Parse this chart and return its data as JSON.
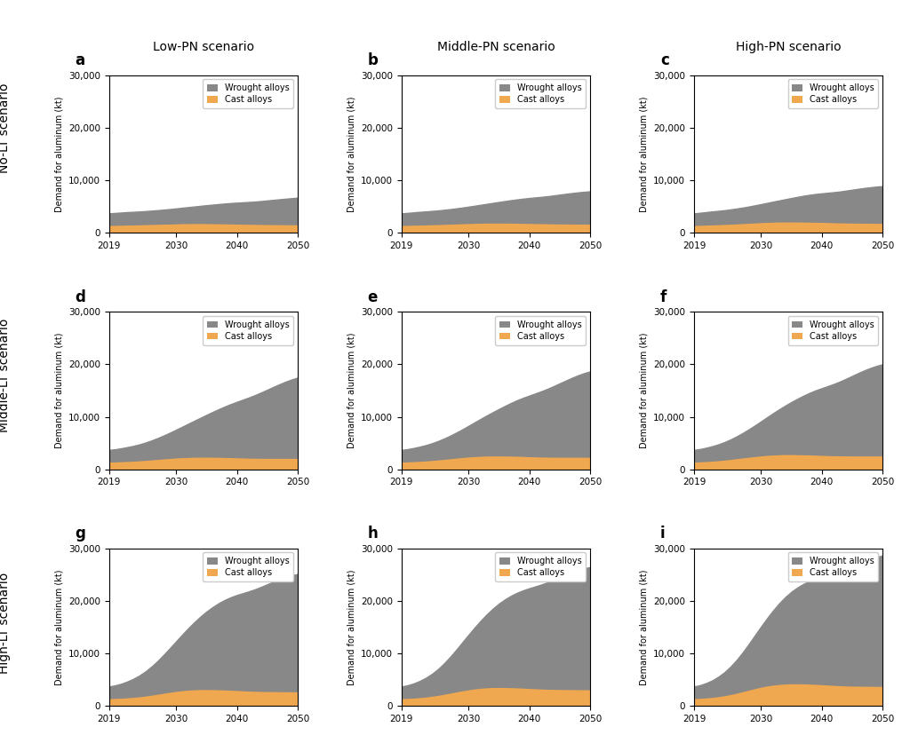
{
  "years": [
    2019,
    2020,
    2021,
    2022,
    2023,
    2024,
    2025,
    2026,
    2027,
    2028,
    2029,
    2030,
    2031,
    2032,
    2033,
    2034,
    2035,
    2036,
    2037,
    2038,
    2039,
    2040,
    2041,
    2042,
    2043,
    2044,
    2045,
    2046,
    2047,
    2048,
    2049,
    2050
  ],
  "subplot_labels": [
    "a",
    "b",
    "c",
    "d",
    "e",
    "f",
    "g",
    "h",
    "i"
  ],
  "col_titles": [
    "Low-PN scenario",
    "Middle-PN scenario",
    "High-PN scenario"
  ],
  "row_labels": [
    "No-LT scenario",
    "Middle-LT scenario",
    "High-LT scenario"
  ],
  "ylabel": "Demand for aluminum (kt)",
  "ylim": [
    0,
    30000
  ],
  "yticks": [
    0,
    10000,
    20000,
    30000
  ],
  "xticks": [
    2019,
    2030,
    2040,
    2050
  ],
  "wrought_color": "#888888",
  "cast_color": "#F0A850",
  "legend_labels": [
    "Wrought alloys",
    "Cast alloys"
  ],
  "wrought_data": {
    "a": [
      2200,
      2250,
      2300,
      2350,
      2380,
      2420,
      2460,
      2520,
      2580,
      2650,
      2730,
      2820,
      2920,
      3020,
      3130,
      3250,
      3380,
      3510,
      3640,
      3760,
      3870,
      3960,
      4050,
      4140,
      4230,
      4350,
      4480,
      4600,
      4720,
      4840,
      4950,
      5050
    ],
    "b": [
      2200,
      2260,
      2330,
      2400,
      2450,
      2510,
      2580,
      2660,
      2750,
      2850,
      2970,
      3100,
      3240,
      3390,
      3550,
      3720,
      3900,
      4080,
      4260,
      4430,
      4590,
      4730,
      4860,
      4990,
      5130,
      5300,
      5470,
      5630,
      5780,
      5920,
      6040,
      6150
    ],
    "c": [
      2200,
      2270,
      2360,
      2450,
      2520,
      2600,
      2700,
      2810,
      2930,
      3070,
      3230,
      3400,
      3590,
      3790,
      3990,
      4210,
      4440,
      4670,
      4890,
      5090,
      5270,
      5420,
      5560,
      5700,
      5860,
      6050,
      6240,
      6420,
      6590,
      6740,
      6870,
      6980
    ],
    "d": [
      2200,
      2300,
      2450,
      2620,
      2800,
      3020,
      3290,
      3600,
      3960,
      4360,
      4800,
      5280,
      5780,
      6300,
      6840,
      7380,
      7940,
      8500,
      9050,
      9580,
      10080,
      10550,
      11000,
      11450,
      11920,
      12430,
      12960,
      13490,
      14000,
      14480,
      14900,
      15250
    ],
    "e": [
      2200,
      2310,
      2480,
      2680,
      2900,
      3170,
      3490,
      3860,
      4280,
      4750,
      5260,
      5820,
      6410,
      7010,
      7620,
      8220,
      8830,
      9430,
      10010,
      10560,
      11060,
      11520,
      11970,
      12420,
      12900,
      13420,
      13960,
      14490,
      15000,
      15480,
      15890,
      16230
    ],
    "f": [
      2200,
      2320,
      2510,
      2730,
      2990,
      3310,
      3690,
      4130,
      4630,
      5190,
      5800,
      6460,
      7140,
      7840,
      8540,
      9220,
      9890,
      10530,
      11140,
      11710,
      12220,
      12670,
      13110,
      13560,
      14040,
      14570,
      15120,
      15660,
      16170,
      16630,
      17020,
      17340
    ],
    "g": [
      2200,
      2380,
      2650,
      3000,
      3430,
      3960,
      4610,
      5380,
      6260,
      7250,
      8320,
      9430,
      10560,
      11680,
      12760,
      13780,
      14730,
      15590,
      16360,
      17030,
      17590,
      18060,
      18470,
      18880,
      19310,
      19800,
      20310,
      20820,
      21290,
      21700,
      22050,
      22300
    ],
    "h": [
      2200,
      2390,
      2680,
      3070,
      3560,
      4160,
      4900,
      5790,
      6810,
      7940,
      9140,
      10360,
      11570,
      12750,
      13870,
      14900,
      15840,
      16670,
      17390,
      18000,
      18510,
      18960,
      19370,
      19790,
      20230,
      20730,
      21250,
      21760,
      22230,
      22640,
      22980,
      23230
    ],
    "i": [
      2200,
      2400,
      2710,
      3130,
      3680,
      4360,
      5200,
      6200,
      7360,
      8650,
      10020,
      11410,
      12780,
      14100,
      15330,
      16430,
      17400,
      18220,
      18920,
      19510,
      20010,
      20460,
      20880,
      21300,
      21750,
      22260,
      22790,
      23310,
      23780,
      24190,
      24530,
      24780
    ]
  },
  "cast_data": {
    "a": [
      1500,
      1530,
      1560,
      1590,
      1610,
      1640,
      1670,
      1700,
      1730,
      1760,
      1790,
      1820,
      1850,
      1870,
      1880,
      1880,
      1870,
      1850,
      1830,
      1810,
      1790,
      1770,
      1750,
      1730,
      1710,
      1690,
      1680,
      1670,
      1660,
      1650,
      1640,
      1630
    ],
    "b": [
      1500,
      1530,
      1560,
      1590,
      1620,
      1650,
      1680,
      1720,
      1760,
      1800,
      1840,
      1880,
      1910,
      1940,
      1960,
      1970,
      1970,
      1960,
      1950,
      1930,
      1910,
      1890,
      1870,
      1850,
      1830,
      1810,
      1800,
      1790,
      1780,
      1770,
      1760,
      1750
    ],
    "c": [
      1500,
      1540,
      1580,
      1620,
      1660,
      1700,
      1750,
      1810,
      1870,
      1930,
      1990,
      2050,
      2100,
      2140,
      2170,
      2180,
      2180,
      2170,
      2160,
      2140,
      2120,
      2090,
      2060,
      2030,
      2000,
      1980,
      1960,
      1950,
      1940,
      1930,
      1920,
      1910
    ],
    "d": [
      1500,
      1530,
      1570,
      1620,
      1680,
      1750,
      1830,
      1920,
      2020,
      2110,
      2200,
      2280,
      2340,
      2390,
      2420,
      2440,
      2440,
      2430,
      2410,
      2380,
      2350,
      2310,
      2280,
      2250,
      2230,
      2220,
      2210,
      2210,
      2210,
      2210,
      2210,
      2210
    ],
    "e": [
      1500,
      1540,
      1590,
      1650,
      1720,
      1810,
      1910,
      2020,
      2140,
      2260,
      2370,
      2470,
      2550,
      2610,
      2650,
      2670,
      2670,
      2660,
      2640,
      2610,
      2570,
      2530,
      2490,
      2460,
      2440,
      2430,
      2420,
      2420,
      2420,
      2420,
      2420,
      2420
    ],
    "f": [
      1500,
      1550,
      1610,
      1680,
      1770,
      1880,
      2010,
      2150,
      2290,
      2430,
      2560,
      2680,
      2780,
      2850,
      2900,
      2930,
      2930,
      2910,
      2890,
      2860,
      2820,
      2780,
      2740,
      2710,
      2690,
      2680,
      2670,
      2670,
      2670,
      2670,
      2670,
      2670
    ],
    "g": [
      1500,
      1540,
      1590,
      1660,
      1750,
      1860,
      2000,
      2170,
      2350,
      2540,
      2720,
      2880,
      3020,
      3120,
      3190,
      3230,
      3240,
      3220,
      3190,
      3150,
      3100,
      3050,
      2990,
      2940,
      2900,
      2870,
      2850,
      2840,
      2830,
      2820,
      2810,
      2800
    ],
    "h": [
      1500,
      1550,
      1610,
      1700,
      1810,
      1960,
      2130,
      2340,
      2560,
      2780,
      3000,
      3190,
      3360,
      3480,
      3570,
      3620,
      3640,
      3620,
      3590,
      3550,
      3500,
      3440,
      3380,
      3330,
      3290,
      3260,
      3240,
      3230,
      3220,
      3210,
      3200,
      3190
    ],
    "i": [
      1500,
      1560,
      1640,
      1740,
      1880,
      2060,
      2290,
      2550,
      2840,
      3130,
      3420,
      3680,
      3910,
      4080,
      4210,
      4290,
      4330,
      4330,
      4310,
      4270,
      4220,
      4160,
      4090,
      4020,
      3960,
      3920,
      3890,
      3870,
      3860,
      3850,
      3840,
      3830
    ]
  }
}
